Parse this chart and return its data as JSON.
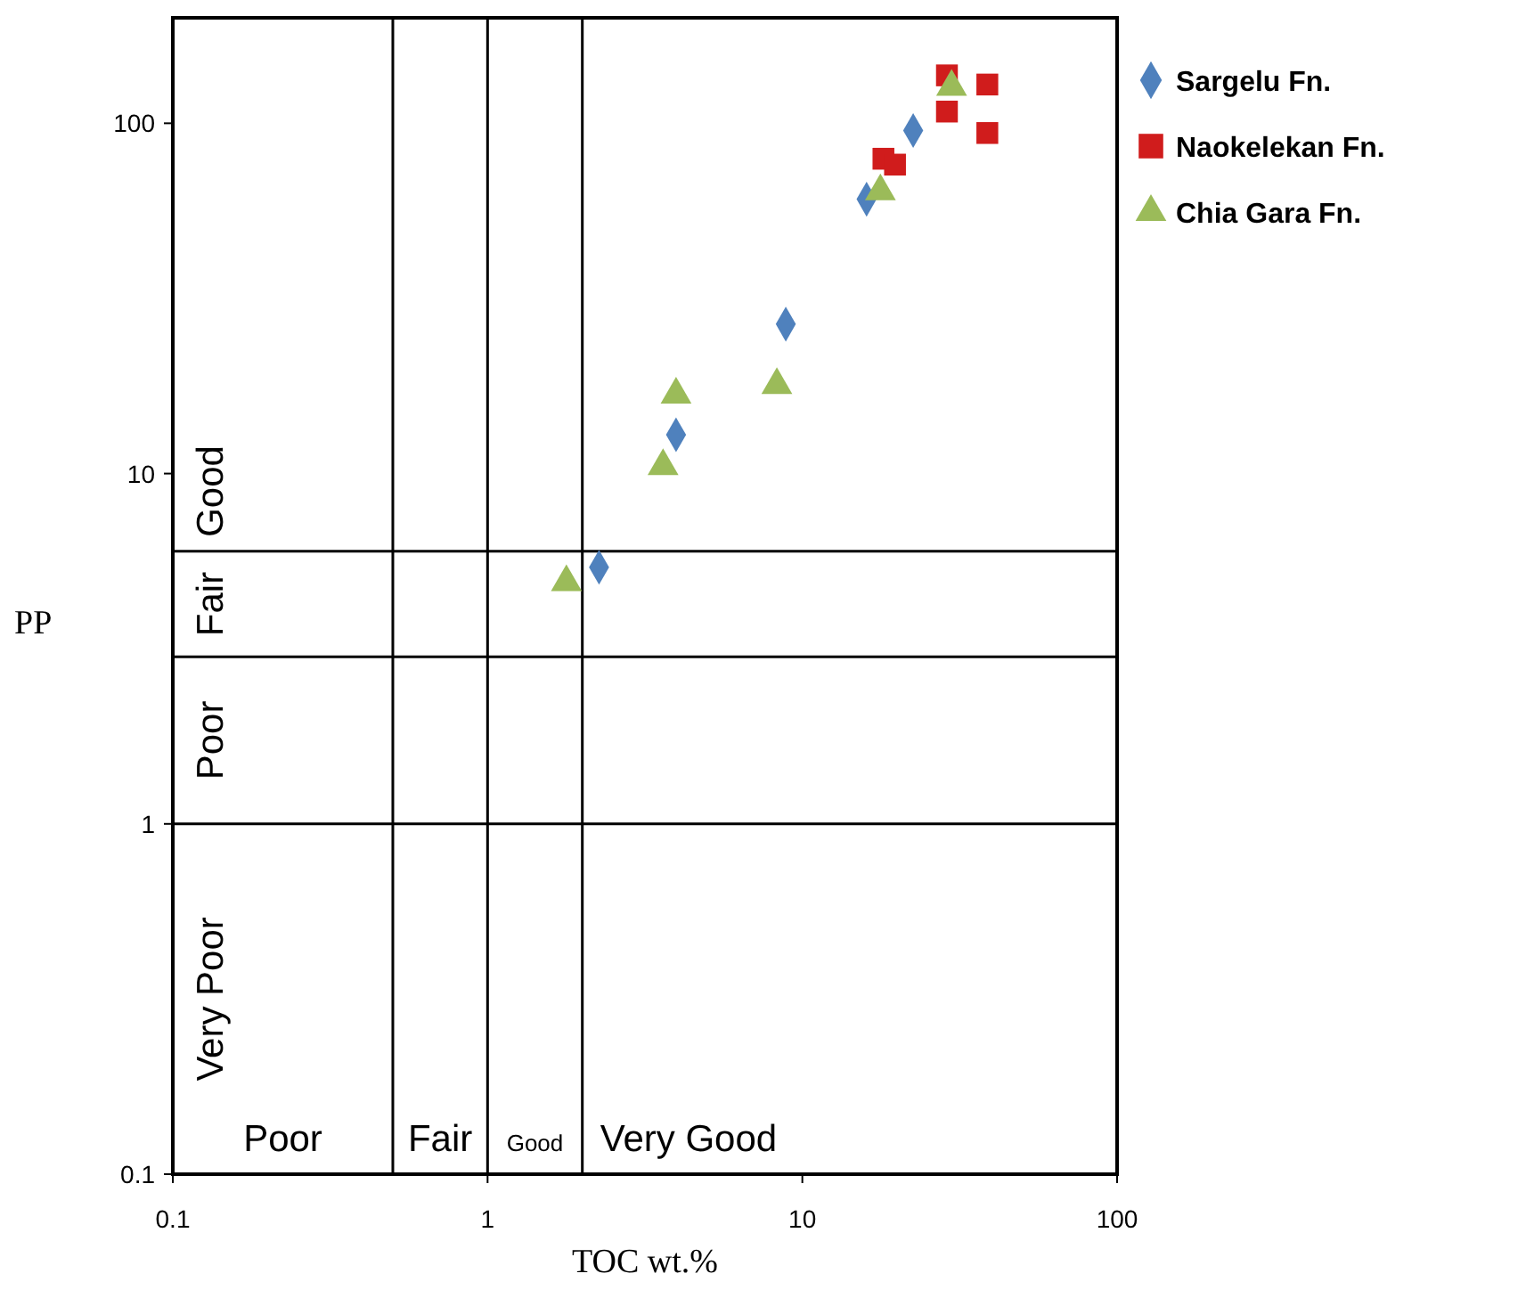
{
  "chart_data": {
    "type": "scatter",
    "xlabel": "TOC wt.%",
    "ylabel": "PP",
    "log": "xy",
    "grid": false,
    "legend": "right",
    "xlim": [
      0.1,
      100
    ],
    "xticks": [
      0.1,
      1,
      10,
      100
    ],
    "ylim": [
      0.1,
      200
    ],
    "yticks": [
      0.1,
      1,
      10,
      100
    ],
    "series": [
      {
        "name": "Sargelu Fn.",
        "color": "#4f81bd",
        "marker": "diamond",
        "x": [
          2.26,
          3.97,
          8.86,
          16.0,
          22.5
        ],
        "values": [
          5.4,
          12.9,
          26.7,
          60.7,
          95.3
        ]
      },
      {
        "name": "Naokelekan Fn.",
        "color": "#d01c1c",
        "marker": "square",
        "x": [
          28.8,
          28.8,
          38.7,
          38.7,
          18.1,
          19.7
        ],
        "values": [
          137,
          108,
          129,
          93.8,
          79.2,
          76.2
        ]
      },
      {
        "name": "Chia Gara Fn.",
        "color": "#9bbb59",
        "marker": "triangle",
        "x": [
          1.78,
          3.61,
          3.97,
          8.3,
          17.7,
          29.8
        ],
        "values": [
          4.9,
          10.5,
          16.8,
          17.9,
          63.9,
          127
        ]
      }
    ],
    "ref_lines": [
      {
        "axis": "x",
        "value": 0.5
      },
      {
        "axis": "x",
        "value": 1
      },
      {
        "axis": "x",
        "value": 2
      },
      {
        "axis": "y",
        "value": 1
      },
      {
        "axis": "y",
        "value": 3
      },
      {
        "axis": "y",
        "value": 6
      }
    ],
    "annotations": [
      "Poor",
      "Fair",
      "Good",
      "Very Good",
      "Very Poor",
      "Poor",
      "Fair",
      "Good"
    ]
  }
}
